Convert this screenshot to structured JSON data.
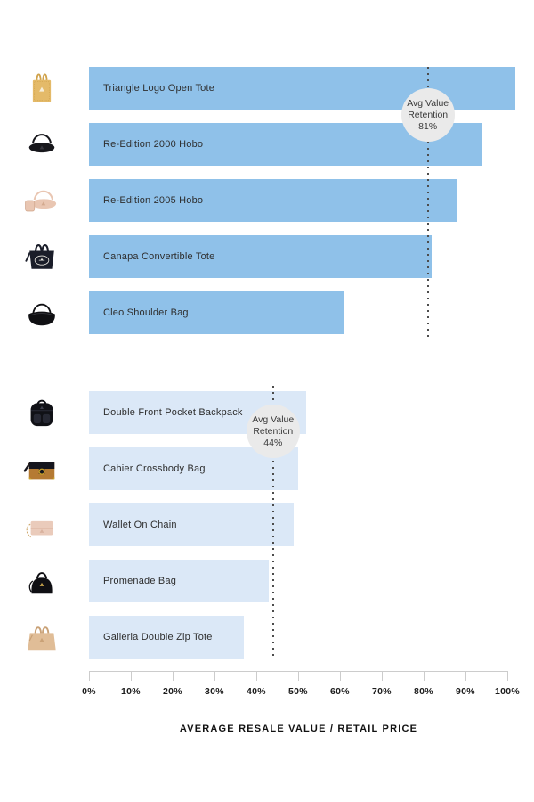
{
  "style": {
    "accent_blue": "#8fc1e9",
    "pale_blue": "#dbe8f7",
    "badge_bg": "#eaeaea",
    "dot_color": "#4c4c4c",
    "axis_line": "#cccccc"
  },
  "chart_data": {
    "type": "bar",
    "orientation": "horizontal",
    "title": "",
    "xlabel": "AVERAGE RESALE VALUE / RETAIL PRICE",
    "xlim": [
      0,
      100
    ],
    "x_tick_labels": [
      "0%",
      "10%",
      "20%",
      "30%",
      "40%",
      "50%",
      "60%",
      "70%",
      "80%",
      "90%",
      "100%"
    ],
    "grid": false,
    "groups": [
      {
        "name": "high-retention",
        "bar_color": "#8fc1e9",
        "avg_line": {
          "value": 81,
          "lines": [
            "Avg Value",
            "Retention",
            "81%"
          ]
        },
        "bars": [
          {
            "label": "Triangle Logo Open Tote",
            "value": 102,
            "icon": {
              "name": "open-tote",
              "body": "#e4ba69",
              "accent": "#d0a24b",
              "logo": "#f6edd8"
            }
          },
          {
            "label": "Re-Edition 2000 Hobo",
            "value": 94,
            "icon": {
              "name": "hobo",
              "body": "#17171c",
              "accent": "#34343c"
            }
          },
          {
            "label": "Re-Edition 2005 Hobo",
            "value": 88,
            "icon": {
              "name": "hobo-pouch",
              "body": "#e9c6b2",
              "accent": "#d3a98f"
            }
          },
          {
            "label": "Canapa Convertible Tote",
            "value": 82,
            "icon": {
              "name": "canvas-tote",
              "body": "#1a1d29",
              "accent": "#e8e6df"
            }
          },
          {
            "label": "Cleo Shoulder Bag",
            "value": 61,
            "icon": {
              "name": "cleo",
              "body": "#101013",
              "accent": "#35353b"
            }
          }
        ]
      },
      {
        "name": "low-retention",
        "bar_color": "#dbe8f7",
        "avg_line": {
          "value": 44,
          "lines": [
            "Avg Value",
            "Retention",
            "44%"
          ]
        },
        "bars": [
          {
            "label": "Double Front Pocket Backpack",
            "value": 52,
            "icon": {
              "name": "backpack",
              "body": "#101116",
              "accent": "#262833"
            }
          },
          {
            "label": "Cahier Crossbody Bag",
            "value": 50,
            "icon": {
              "name": "cahier",
              "body": "#b57a33",
              "accent": "#15151d",
              "gold": "#c9a227"
            }
          },
          {
            "label": "Wallet On Chain",
            "value": 49,
            "icon": {
              "name": "woc",
              "body": "#eacbbb",
              "accent": "#d9b29e",
              "gold": "#cfa86c"
            }
          },
          {
            "label": "Promenade Bag",
            "value": 43,
            "icon": {
              "name": "promenade",
              "body": "#0f0f13",
              "accent": "#c8a44c"
            }
          },
          {
            "label": "Galleria Double Zip Tote",
            "value": 37,
            "icon": {
              "name": "galleria",
              "body": "#e0bd97",
              "accent": "#c9a176"
            }
          }
        ]
      }
    ]
  }
}
